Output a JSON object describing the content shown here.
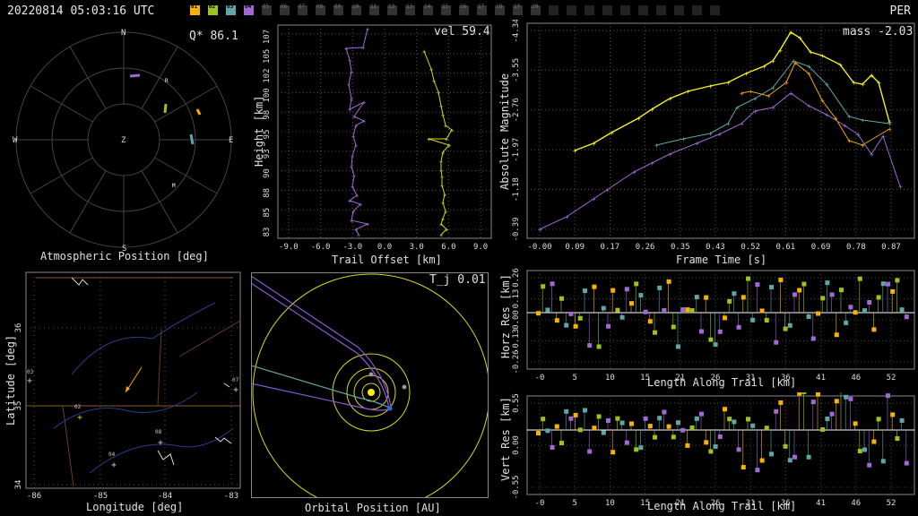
{
  "header": {
    "timestamp": "20220814 05:03:16 UTC",
    "camera": "PER",
    "stations": [
      {
        "id": "01",
        "active": true,
        "color": "#f6b400"
      },
      {
        "id": "02",
        "active": true,
        "color": "#9ec21c"
      },
      {
        "id": "03",
        "active": true,
        "color": "#5fa7a7"
      },
      {
        "id": "04",
        "active": true,
        "color": "#a06ad6"
      },
      {
        "id": "05",
        "active": false
      },
      {
        "id": "06",
        "active": false
      },
      {
        "id": "07",
        "active": false
      },
      {
        "id": "08",
        "active": false
      },
      {
        "id": "09",
        "active": false
      },
      {
        "id": "10",
        "active": false
      },
      {
        "id": "11",
        "active": false
      },
      {
        "id": "12",
        "active": false
      },
      {
        "id": "13",
        "active": false
      },
      {
        "id": "14",
        "active": false
      },
      {
        "id": "15",
        "active": false
      },
      {
        "id": "16",
        "active": false
      },
      {
        "id": "17",
        "active": false
      },
      {
        "id": "18",
        "active": false
      },
      {
        "id": "19",
        "active": false
      },
      {
        "id": "20",
        "active": false
      }
    ]
  },
  "chart_data": [
    {
      "id": "atmo",
      "type": "scatter",
      "title": "Atmospheric Position [deg]",
      "corner_label": "Q* 86.1",
      "compass": {
        "n": "N",
        "s": "S",
        "e": "E",
        "w": "W",
        "z": "Z"
      },
      "markers": {
        "r": "R",
        "m": "M"
      }
    },
    {
      "id": "height",
      "type": "line",
      "corner_label": "vel 59.4",
      "xlabel": "Trail Offset [km]",
      "ylabel": "Height [km]",
      "xticks": [
        "-9.0",
        "-6.0",
        "-3.0",
        "0.0",
        "3.0",
        "6.0",
        "9.0"
      ],
      "yticks": [
        "83",
        "85",
        "88",
        "90",
        "93",
        "95",
        "98",
        "100",
        "102",
        "105",
        "107"
      ],
      "xlim": [
        -10,
        10
      ],
      "ylim": [
        82,
        108
      ]
    },
    {
      "id": "mag",
      "type": "line",
      "corner_label": "mass -2.03",
      "xlabel": "Frame Time [s]",
      "ylabel": "Absolute Magnitude",
      "xticks": [
        "-0.00",
        "0.09",
        "0.17",
        "0.26",
        "0.35",
        "0.43",
        "0.52",
        "0.61",
        "0.69",
        "0.78",
        "0.87"
      ],
      "yticks": [
        "-4.34",
        "-3.55",
        "-2.76",
        "-1.97",
        "-1.18",
        "-0.39"
      ]
    },
    {
      "id": "map",
      "type": "scatter",
      "xlabel": "Longitude [deg]",
      "ylabel": "Latitude [deg]",
      "xticks": [
        "-86",
        "-85",
        "-84",
        "-83"
      ],
      "yticks": [
        "34",
        "35",
        "36"
      ],
      "station_labels": [
        "03",
        "02",
        "04",
        "08",
        "07"
      ]
    },
    {
      "id": "orbit",
      "type": "scatter",
      "corner_label": "T_j 0.01",
      "xlabel": "Orbital Position [AU]"
    },
    {
      "id": "horz",
      "type": "scatter",
      "xlabel": "Length Along Trail [km]",
      "ylabel": "Horz Res [km]",
      "xticks": [
        "-0",
        "5",
        "10",
        "15",
        "21",
        "26",
        "31",
        "36",
        "41",
        "46",
        "52"
      ],
      "yticks": [
        "0.26",
        "0.13",
        "0.00",
        "-0.13",
        "-0.26"
      ]
    },
    {
      "id": "vert",
      "type": "scatter",
      "xlabel": "Length Along Trail [km]",
      "ylabel": "Vert Res [km]",
      "xticks": [
        "-0",
        "5",
        "10",
        "15",
        "21",
        "26",
        "31",
        "36",
        "41",
        "46",
        "52"
      ],
      "yticks": [
        "0.55",
        "0.00",
        "-0.55"
      ]
    }
  ]
}
